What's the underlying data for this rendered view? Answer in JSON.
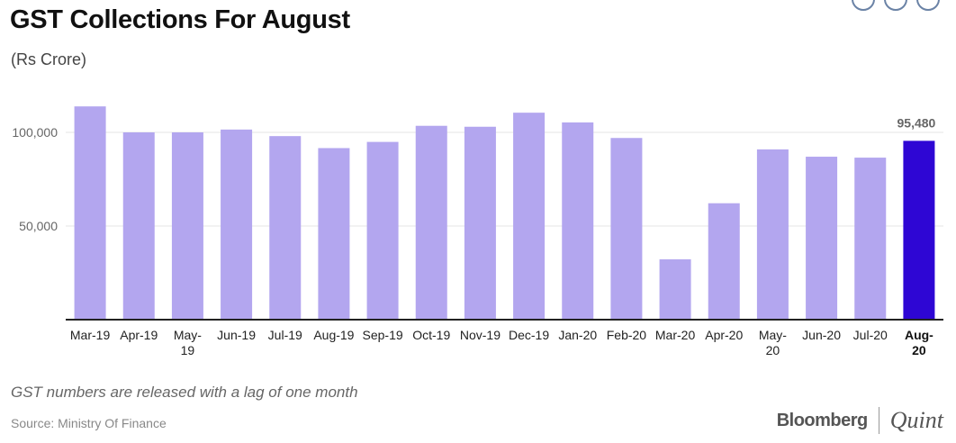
{
  "header": {
    "title": "GST Collections For August",
    "subtitle": "(Rs Crore)"
  },
  "footer": {
    "note": "GST numbers are released with a lag of one month",
    "source": "Source: Ministry Of Finance",
    "brand_left": "Bloomberg",
    "brand_right": "Quint"
  },
  "colors": {
    "bar": "#b3a6ef",
    "highlight": "#2e06d4",
    "axis": "#222222",
    "grid": "#e5e5e5"
  },
  "chart_data": {
    "type": "bar",
    "title": "GST Collections For August",
    "subtitle": "(Rs Crore)",
    "xlabel": "",
    "ylabel": "",
    "categories": [
      "Mar-19",
      "Apr-19",
      "May-19",
      "Jun-19",
      "Jul-19",
      "Aug-19",
      "Sep-19",
      "Oct-19",
      "Nov-19",
      "Dec-19",
      "Jan-20",
      "Feb-20",
      "Mar-20",
      "Apr-20",
      "May-20",
      "Jun-20",
      "Jul-20",
      "Aug-20"
    ],
    "values": [
      113865,
      100000,
      100000,
      101500,
      98000,
      91600,
      94900,
      103500,
      103000,
      110500,
      105300,
      97000,
      32200,
      62150,
      90900,
      87000,
      86500,
      95480
    ],
    "yticks": [
      {
        "value": 50000,
        "label": "50,000"
      },
      {
        "value": 100000,
        "label": "100,000"
      }
    ],
    "ylim": [
      0,
      140000
    ],
    "grid": true,
    "highlight": {
      "category": "Aug-20",
      "label": "95,480"
    }
  }
}
